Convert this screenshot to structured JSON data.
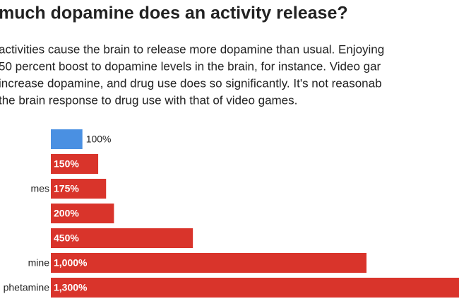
{
  "chart_data": {
    "type": "bar",
    "orientation": "horizontal",
    "title": "much dopamine does an activity release?",
    "subtitle": [
      "activities cause the brain to release more dopamine than usual. Enjoying",
      "50 percent boost to dopamine levels in the brain, for instance. Video gar",
      "increase dopamine, and drug use does so significantly. It's not reasonab",
      "the brain response to drug use with that of video games."
    ],
    "categories": [
      null,
      null,
      "mes",
      null,
      null,
      "mine",
      "phetamine"
    ],
    "values": [
      100,
      150,
      175,
      200,
      450,
      1000,
      1300
    ],
    "value_labels": [
      "100%",
      "150%",
      "175%",
      "200%",
      "450%",
      "1,000%",
      "1,300%"
    ],
    "colors": [
      "#4a90e2",
      "#d9342b",
      "#d9342b",
      "#d9342b",
      "#d9342b",
      "#d9342b",
      "#d9342b"
    ]
  }
}
